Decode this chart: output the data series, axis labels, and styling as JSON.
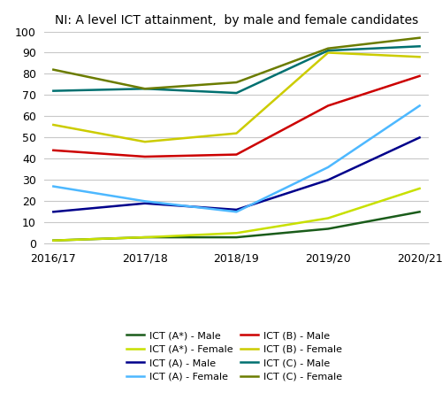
{
  "title": "NI: A level ICT attainment,  by male and female candidates",
  "x_labels": [
    "2016/17",
    "2017/18",
    "2018/19",
    "2019/20",
    "2020/21"
  ],
  "series": {
    "ICT (A*) - Male": {
      "values": [
        1.5,
        3,
        3,
        7,
        15
      ],
      "color": "#1a5c1a"
    },
    "ICT (A*) - Female": {
      "values": [
        1.5,
        3,
        5,
        12,
        26
      ],
      "color": "#c8e000"
    },
    "ICT (A) - Male": {
      "values": [
        15,
        19,
        16,
        30,
        50
      ],
      "color": "#00008b"
    },
    "ICT (A) - Female": {
      "values": [
        27,
        20,
        15,
        36,
        65
      ],
      "color": "#4db8ff"
    },
    "ICT (B) - Male": {
      "values": [
        44,
        41,
        42,
        65,
        79
      ],
      "color": "#cc0000"
    },
    "ICT (B) - Female": {
      "values": [
        56,
        48,
        52,
        90,
        88
      ],
      "color": "#cccc00"
    },
    "ICT (C) - Male": {
      "values": [
        72,
        73,
        71,
        91,
        93
      ],
      "color": "#007070"
    },
    "ICT (C) - Female": {
      "values": [
        82,
        73,
        76,
        92,
        97
      ],
      "color": "#6b7c00"
    }
  },
  "ylim": [
    0,
    100
  ],
  "legend_order": [
    "ICT (A*) - Male",
    "ICT (A*) - Female",
    "ICT (A) - Male",
    "ICT (A) - Female",
    "ICT (B) - Male",
    "ICT (B) - Female",
    "ICT (C) - Male",
    "ICT (C) - Female"
  ],
  "background_color": "#ffffff",
  "grid_color": "#c8c8c8",
  "title_fontsize": 10,
  "tick_fontsize": 9,
  "legend_fontsize": 8,
  "linewidth": 1.8
}
